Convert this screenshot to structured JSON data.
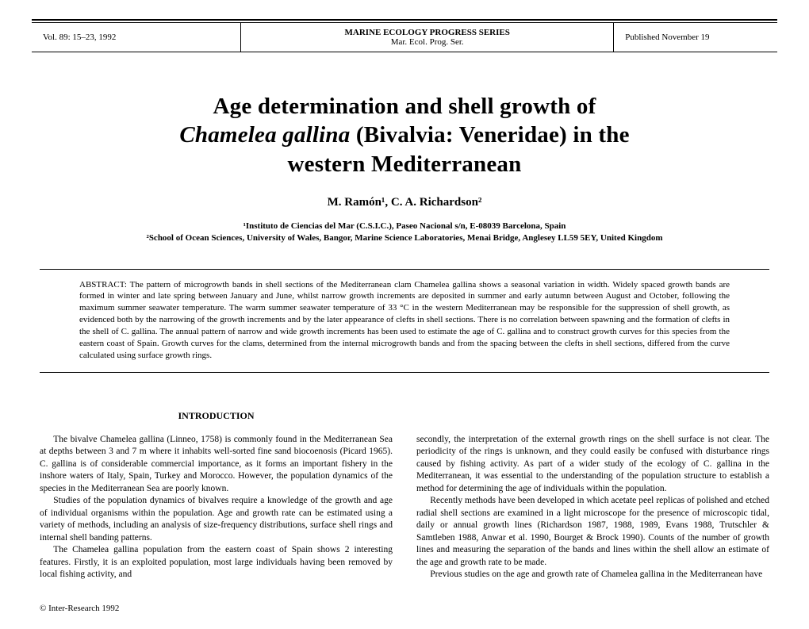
{
  "header": {
    "vol_line": "Vol. 89: 15–23, 1992",
    "series_main": "MARINE ECOLOGY PROGRESS SERIES",
    "series_sub": "Mar. Ecol. Prog. Ser.",
    "published": "Published November 19"
  },
  "title": {
    "line1_pre": "Age determination and shell growth of",
    "line2_ital": "Chamelea gallina",
    "line2_rest": " (Bivalvia: Veneridae) in the",
    "line3": "western Mediterranean"
  },
  "authors": "M. Ramón¹, C. A. Richardson²",
  "affil1": "¹Instituto de Ciencias del Mar (C.S.I.C.), Paseo Nacional s/n, E-08039 Barcelona, Spain",
  "affil2": "²School of Ocean Sciences, University of Wales, Bangor, Marine Science Laboratories, Menai Bridge, Anglesey LL59 5EY, United Kingdom",
  "abstract": "ABSTRACT: The pattern of microgrowth bands in shell sections of the Mediterranean clam Chamelea gallina shows a seasonal variation in width. Widely spaced growth bands are formed in winter and late spring between January and June, whilst narrow growth increments are deposited in summer and early autumn between August and October, following the maximum summer seawater temperature. The warm summer seawater temperature of 33 °C in the western Mediterranean may be responsible for the suppression of shell growth, as evidenced both by the narrowing of the growth increments and by the later appearance of clefts in shell sections. There is no correlation between spawning and the formation of clefts in the shell of C. gallina. The annual pattern of narrow and wide growth increments has been used to estimate the age of C. gallina and to construct growth curves for this species from the eastern coast of Spain. Growth curves for the clams, determined from the internal microgrowth bands and from the spacing between the clefts in shell sections, differed from the curve calculated using surface growth rings.",
  "intro_head": "INTRODUCTION",
  "col1_p1": "The bivalve Chamelea gallina (Linneo, 1758) is commonly found in the Mediterranean Sea at depths between 3 and 7 m where it inhabits well-sorted fine sand biocoenosis (Picard 1965). C. gallina is of considerable commercial importance, as it forms an important fishery in the inshore waters of Italy, Spain, Turkey and Morocco. However, the population dynamics of the species in the Mediterranean Sea are poorly known.",
  "col1_p2": "Studies of the population dynamics of bivalves require a knowledge of the growth and age of individual organisms within the population. Age and growth rate can be estimated using a variety of methods, including an analysis of size-frequency distributions, surface shell rings and internal shell banding patterns.",
  "col1_p3": "The Chamelea gallina population from the eastern coast of Spain shows 2 interesting features. Firstly, it is an exploited population, most large individuals having been removed by local fishing activity, and",
  "col2_p1": "secondly, the interpretation of the external growth rings on the shell surface is not clear. The periodicity of the rings is unknown, and they could easily be confused with disturbance rings caused by fishing activity. As part of a wider study of the ecology of C. gallina in the Mediterranean, it was essential to the understanding of the population structure to establish a method for determining the age of individuals within the population.",
  "col2_p2": "Recently methods have been developed in which acetate peel replicas of polished and etched radial shell sections are examined in a light microscope for the presence of microscopic tidal, daily or annual growth lines (Richardson 1987, 1988, 1989, Evans 1988, Trutschler & Samtleben 1988, Anwar et al. 1990, Bourget & Brock 1990). Counts of the number of growth lines and measuring the separation of the bands and lines within the shell allow an estimate of the age and growth rate to be made.",
  "col2_p3": "Previous studies on the age and growth rate of Chamelea gallina in the Mediterranean have",
  "copyright": "© Inter-Research 1992"
}
